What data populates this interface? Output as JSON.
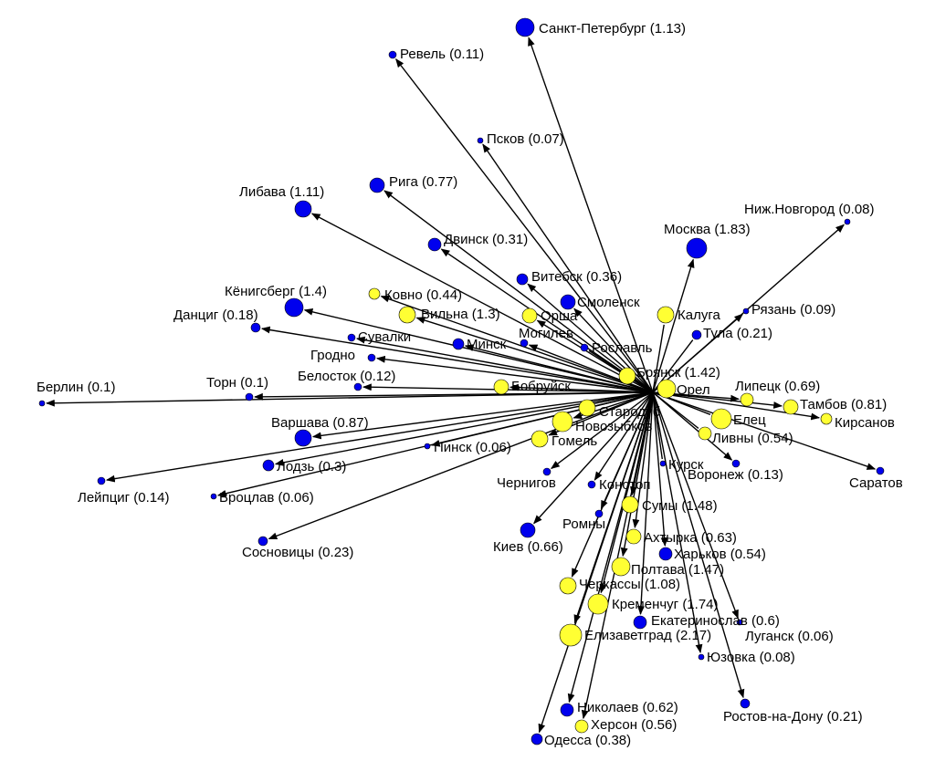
{
  "nodes": [
    {
      "label": "Санкт-Петербург (1.13)",
      "color": "#0000ee"
    },
    {
      "label": "Ревель (0.11)",
      "color": "#0000ee"
    },
    {
      "label": "Псков (0.07)",
      "color": "#0000ee"
    },
    {
      "label": "Рига (0.77)",
      "color": "#0000ee"
    },
    {
      "label": "Либава (1.11)",
      "color": "#0000ee"
    },
    {
      "label": "Ниж.Новгород (0.08)",
      "color": "#0000ee"
    },
    {
      "label": "Москва (1.83)",
      "color": "#0000ee"
    },
    {
      "label": "Двинск (0.31)",
      "color": "#0000ee"
    },
    {
      "label": "Витебск (0.36)",
      "color": "#0000ee"
    },
    {
      "label": "Кёнигсберг (1.4)",
      "color": "#0000ee"
    },
    {
      "label": "Ковно (0.44)",
      "color": "#ffff33"
    },
    {
      "label": "Смоленск",
      "color": "#0000ee"
    },
    {
      "label": "Калуга",
      "color": "#ffff33"
    },
    {
      "label": "Рязань (0.09)",
      "color": "#0000ee"
    },
    {
      "label": "Данциг (0.18)",
      "color": "#0000ee"
    },
    {
      "label": "Вильна (1.3)",
      "color": "#ffff33"
    },
    {
      "label": "Орша",
      "color": "#ffff33"
    },
    {
      "label": "Могилев",
      "color": "#0000ee"
    },
    {
      "label": "Тула (0.21)",
      "color": "#0000ee"
    },
    {
      "label": "Сувалки",
      "color": "#0000ee"
    },
    {
      "label": "Минск",
      "color": "#0000ee"
    },
    {
      "label": "Рославль",
      "color": "#0000ee"
    },
    {
      "label": "Гродно",
      "color": "#0000ee"
    },
    {
      "label": "Брянск (1.42)",
      "color": "#ffff33"
    },
    {
      "label": "Белосток (0.12)",
      "color": "#0000ee"
    },
    {
      "label": "Бобруйск",
      "color": "#ffff33"
    },
    {
      "label": "Липецк (0.69)",
      "color": "#ffff33"
    },
    {
      "label": "Орел",
      "color": "#ffff33"
    },
    {
      "label": "Торн (0.1)",
      "color": "#0000ee"
    },
    {
      "label": "Берлин (0.1)",
      "color": "#0000ee"
    },
    {
      "label": "Стародуб",
      "color": "#ffff33"
    },
    {
      "label": "Тамбов (0.81)",
      "color": "#ffff33"
    },
    {
      "label": "Кирсанов",
      "color": "#ffff33"
    },
    {
      "label": "Елец",
      "color": "#ffff33"
    },
    {
      "label": "Новозыбков",
      "color": "#ffff33"
    },
    {
      "label": "Варшава (0.87)",
      "color": "#0000ee"
    },
    {
      "label": "Ливны (0.54)",
      "color": "#ffff33"
    },
    {
      "label": "Гомель",
      "color": "#ffff33"
    },
    {
      "label": "Пинск (0.06)",
      "color": "#0000ee"
    },
    {
      "label": "Курск",
      "color": "#0000ee"
    },
    {
      "label": "Лодзь (0.3)",
      "color": "#0000ee"
    },
    {
      "label": "Воронеж (0.13)",
      "color": "#0000ee"
    },
    {
      "label": "Саратов",
      "color": "#0000ee"
    },
    {
      "label": "Чернигов",
      "color": "#0000ee"
    },
    {
      "label": "Конотоп",
      "color": "#0000ee"
    },
    {
      "label": "Лейпциг (0.14)",
      "color": "#0000ee"
    },
    {
      "label": "Вроцлав (0.06)",
      "color": "#0000ee"
    },
    {
      "label": "Сумы (1.48)",
      "color": "#ffff33"
    },
    {
      "label": "Ромны",
      "color": "#0000ee"
    },
    {
      "label": "Киев (0.66)",
      "color": "#0000ee"
    },
    {
      "label": "Ахтырка (0.63)",
      "color": "#ffff33"
    },
    {
      "label": "Сосновицы (0.23)",
      "color": "#0000ee"
    },
    {
      "label": "Харьков (0.54)",
      "color": "#0000ee"
    },
    {
      "label": "Полтава (1.47)",
      "color": "#ffff33"
    },
    {
      "label": "Черкассы (1.08)",
      "color": "#ffff33"
    },
    {
      "label": "Кременчуг (1.74)",
      "color": "#ffff33"
    },
    {
      "label": "Екатеринослав (0.6)",
      "color": "#0000ee"
    },
    {
      "label": "Луганск (0.06)",
      "color": "#0000ee"
    },
    {
      "label": "Елизаветград (2.17)",
      "color": "#ffff33"
    },
    {
      "label": "Юзовка (0.08)",
      "color": "#0000ee"
    },
    {
      "label": "Ростов-на-Дону (0.21)",
      "color": "#0000ee"
    },
    {
      "label": "Николаев (0.62)",
      "color": "#0000ee"
    },
    {
      "label": "Херсон (0.56)",
      "color": "#ffff33"
    },
    {
      "label": "Одесса (0.38)",
      "color": "#0000ee"
    }
  ]
}
